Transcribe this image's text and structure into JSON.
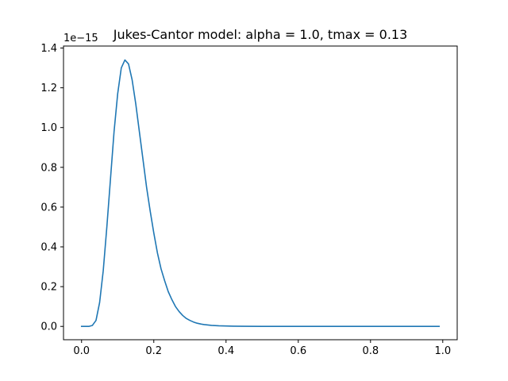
{
  "chart_data": {
    "type": "line",
    "title": "Jukes-Cantor model: alpha = 1.0, tmax = 0.13",
    "xlabel": "",
    "ylabel": "",
    "y_offset_label": "1e−15",
    "xlim": [
      -0.05,
      1.04
    ],
    "ylim": [
      -0.067,
      1.41
    ],
    "x_ticks": [
      0.0,
      0.2,
      0.4,
      0.6,
      0.8,
      1.0
    ],
    "x_tick_labels": [
      "0.0",
      "0.2",
      "0.4",
      "0.6",
      "0.8",
      "1.0"
    ],
    "y_ticks": [
      0.0,
      0.2,
      0.4,
      0.6,
      0.8,
      1.0,
      1.2,
      1.4
    ],
    "y_tick_labels": [
      "0.0",
      "0.2",
      "0.4",
      "0.6",
      "0.8",
      "1.0",
      "1.2",
      "1.4"
    ],
    "grid": false,
    "legend": "none",
    "series": [
      {
        "color": "#1f77b4",
        "x": [
          0.0,
          0.01,
          0.02,
          0.03,
          0.04,
          0.05,
          0.06,
          0.07,
          0.08,
          0.09,
          0.1,
          0.11,
          0.12,
          0.13,
          0.14,
          0.15,
          0.16,
          0.17,
          0.18,
          0.19,
          0.2,
          0.21,
          0.22,
          0.23,
          0.24,
          0.25,
          0.26,
          0.27,
          0.28,
          0.29,
          0.3,
          0.31,
          0.32,
          0.33,
          0.34,
          0.35,
          0.36,
          0.38,
          0.4,
          0.42,
          0.45,
          0.5,
          0.55,
          0.6,
          0.7,
          0.8,
          0.9,
          0.99
        ],
        "y": [
          0.0,
          0.0,
          0.0,
          0.005,
          0.03,
          0.12,
          0.28,
          0.5,
          0.74,
          0.98,
          1.17,
          1.3,
          1.34,
          1.32,
          1.24,
          1.12,
          0.98,
          0.84,
          0.7,
          0.58,
          0.47,
          0.37,
          0.29,
          0.23,
          0.175,
          0.135,
          0.1,
          0.075,
          0.055,
          0.04,
          0.03,
          0.022,
          0.016,
          0.012,
          0.009,
          0.007,
          0.005,
          0.003,
          0.002,
          0.001,
          0.0005,
          0.0002,
          0.0001,
          0.0,
          0.0,
          0.0,
          0.0,
          0.0
        ]
      }
    ]
  }
}
